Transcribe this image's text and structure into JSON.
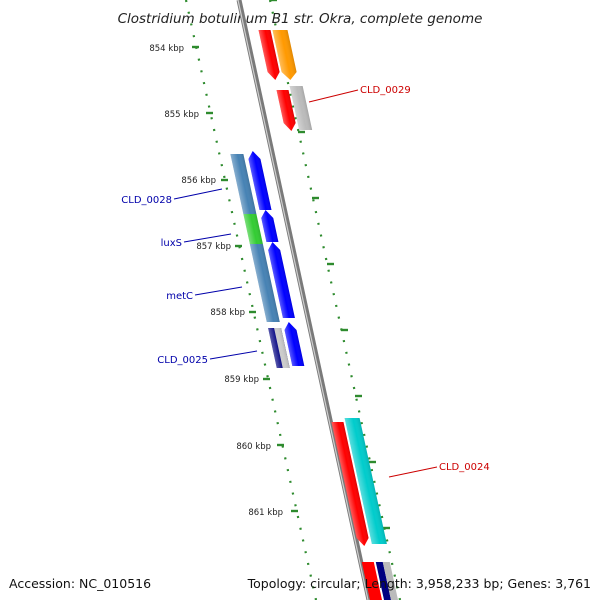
{
  "title": "Clostridium botulinum B1 str. Okra, complete genome",
  "ticks": [
    {
      "label": "854 kbp"
    },
    {
      "label": "855 kbp"
    },
    {
      "label": "856 kbp"
    },
    {
      "label": "857 kbp"
    },
    {
      "label": "858 kbp"
    },
    {
      "label": "859 kbp"
    },
    {
      "label": "860 kbp"
    },
    {
      "label": "861 kbp"
    }
  ],
  "gene_labels": {
    "cld_0029": "CLD_0029",
    "cld_0028": "CLD_0028",
    "luxs": "luxS",
    "metc": "metC",
    "cld_0025": "CLD_0025",
    "cld_0024": "CLD_0024"
  },
  "colors": {
    "backbone": "#9a9a9a",
    "tick_dots": "#2e8b2e",
    "gene_red": "#ff0000",
    "gene_orange": "#ff9900",
    "gene_gray": "#bbbbbb",
    "gene_blue": "#0000ff",
    "gene_steelblue": "#4682b4",
    "gene_green": "#33cc33",
    "gene_navy": "#000080",
    "gene_cyan": "#00cccc",
    "label_red": "#cc0000",
    "label_blue": "#0000aa"
  },
  "footer": {
    "accession": "Accession: NC_010516",
    "summary": "Topology: circular; Length: 3,958,233 bp; Genes: 3,761"
  }
}
